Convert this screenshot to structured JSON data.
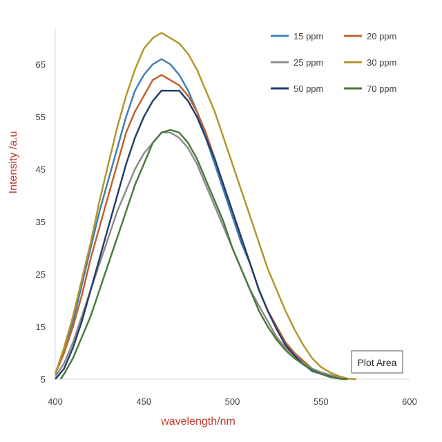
{
  "chart_data": {
    "type": "line",
    "title": "",
    "xlabel": "wavelength/nm",
    "ylabel": "Intensity /a.u",
    "xlim": [
      400,
      600
    ],
    "ylim": [
      5,
      72
    ],
    "x_ticks": [
      400,
      450,
      500,
      550,
      600
    ],
    "y_ticks": [
      5,
      15,
      25,
      35,
      45,
      55,
      65
    ],
    "grid": false,
    "legend_position": "top-right",
    "tooltip": "Plot Area",
    "series": [
      {
        "name": "15 ppm",
        "color": "#3f7fb6",
        "points": [
          [
            400,
            6
          ],
          [
            405,
            10
          ],
          [
            410,
            16
          ],
          [
            415,
            23
          ],
          [
            420,
            30
          ],
          [
            425,
            37
          ],
          [
            430,
            43
          ],
          [
            435,
            49
          ],
          [
            440,
            55
          ],
          [
            445,
            60
          ],
          [
            450,
            63
          ],
          [
            455,
            65
          ],
          [
            460,
            66
          ],
          [
            465,
            65
          ],
          [
            470,
            63
          ],
          [
            475,
            60
          ],
          [
            480,
            56
          ],
          [
            485,
            51
          ],
          [
            490,
            46
          ],
          [
            495,
            41
          ],
          [
            500,
            36
          ],
          [
            505,
            31
          ],
          [
            510,
            27
          ],
          [
            515,
            22
          ],
          [
            520,
            18
          ],
          [
            525,
            15
          ],
          [
            530,
            12
          ],
          [
            535,
            10
          ],
          [
            540,
            8
          ],
          [
            545,
            6.5
          ],
          [
            550,
            6
          ],
          [
            555,
            5.6
          ],
          [
            560,
            5.2
          ],
          [
            565,
            5
          ]
        ]
      },
      {
        "name": "20 ppm",
        "color": "#c0622f",
        "points": [
          [
            400,
            6
          ],
          [
            405,
            10
          ],
          [
            410,
            15
          ],
          [
            415,
            21
          ],
          [
            420,
            28
          ],
          [
            425,
            34
          ],
          [
            430,
            40
          ],
          [
            435,
            46
          ],
          [
            440,
            52
          ],
          [
            445,
            56
          ],
          [
            450,
            59
          ],
          [
            455,
            62
          ],
          [
            460,
            63
          ],
          [
            465,
            62
          ],
          [
            470,
            61
          ],
          [
            475,
            59
          ],
          [
            480,
            56
          ],
          [
            485,
            52
          ],
          [
            490,
            47
          ],
          [
            495,
            42
          ],
          [
            500,
            37
          ],
          [
            505,
            32
          ],
          [
            510,
            27
          ],
          [
            515,
            22
          ],
          [
            520,
            18
          ],
          [
            525,
            15
          ],
          [
            530,
            12
          ],
          [
            535,
            10
          ],
          [
            540,
            8.5
          ],
          [
            545,
            7
          ],
          [
            550,
            6.3
          ],
          [
            555,
            5.8
          ],
          [
            560,
            5.4
          ],
          [
            565,
            5
          ]
        ]
      },
      {
        "name": "25 ppm",
        "color": "#8c8c8c",
        "points": [
          [
            400,
            5.5
          ],
          [
            405,
            8
          ],
          [
            410,
            12
          ],
          [
            415,
            17
          ],
          [
            420,
            22
          ],
          [
            425,
            27
          ],
          [
            430,
            32
          ],
          [
            435,
            37
          ],
          [
            440,
            41
          ],
          [
            445,
            45
          ],
          [
            450,
            48
          ],
          [
            455,
            50
          ],
          [
            460,
            52
          ],
          [
            465,
            52
          ],
          [
            470,
            51
          ],
          [
            475,
            49
          ],
          [
            480,
            46
          ],
          [
            485,
            42
          ],
          [
            490,
            38
          ],
          [
            495,
            34
          ],
          [
            500,
            30
          ],
          [
            505,
            26
          ],
          [
            510,
            22
          ],
          [
            515,
            19
          ],
          [
            520,
            16
          ],
          [
            525,
            13
          ],
          [
            530,
            11
          ],
          [
            535,
            9.5
          ],
          [
            540,
            8
          ],
          [
            545,
            7
          ],
          [
            550,
            6.3
          ],
          [
            555,
            5.8
          ],
          [
            560,
            5.3
          ],
          [
            565,
            5
          ]
        ]
      },
      {
        "name": "30 ppm",
        "color": "#b3952a",
        "points": [
          [
            400,
            6
          ],
          [
            405,
            11
          ],
          [
            410,
            17
          ],
          [
            415,
            24
          ],
          [
            420,
            31
          ],
          [
            425,
            39
          ],
          [
            430,
            46
          ],
          [
            435,
            53
          ],
          [
            440,
            59
          ],
          [
            445,
            64
          ],
          [
            450,
            68
          ],
          [
            455,
            70
          ],
          [
            460,
            71
          ],
          [
            465,
            70
          ],
          [
            470,
            69
          ],
          [
            475,
            67
          ],
          [
            480,
            64
          ],
          [
            485,
            60
          ],
          [
            490,
            56
          ],
          [
            495,
            51
          ],
          [
            500,
            46
          ],
          [
            505,
            41
          ],
          [
            510,
            36
          ],
          [
            515,
            31
          ],
          [
            520,
            26
          ],
          [
            525,
            22
          ],
          [
            530,
            18
          ],
          [
            535,
            14.5
          ],
          [
            540,
            11.5
          ],
          [
            545,
            9
          ],
          [
            550,
            7.3
          ],
          [
            555,
            6.3
          ],
          [
            560,
            5.6
          ],
          [
            565,
            5.1
          ],
          [
            570,
            5
          ]
        ]
      },
      {
        "name": "50 ppm",
        "color": "#243d6b",
        "points": [
          [
            400,
            5
          ],
          [
            405,
            7
          ],
          [
            410,
            11
          ],
          [
            415,
            16
          ],
          [
            420,
            22
          ],
          [
            425,
            28
          ],
          [
            430,
            34
          ],
          [
            435,
            40
          ],
          [
            440,
            46
          ],
          [
            445,
            51
          ],
          [
            450,
            55
          ],
          [
            455,
            58
          ],
          [
            460,
            60
          ],
          [
            465,
            60
          ],
          [
            470,
            60
          ],
          [
            475,
            58
          ],
          [
            480,
            55
          ],
          [
            485,
            51
          ],
          [
            490,
            47
          ],
          [
            495,
            42
          ],
          [
            500,
            37
          ],
          [
            505,
            32
          ],
          [
            510,
            27
          ],
          [
            515,
            22
          ],
          [
            520,
            18
          ],
          [
            525,
            14.5
          ],
          [
            530,
            11.5
          ],
          [
            535,
            9.5
          ],
          [
            540,
            7.8
          ],
          [
            545,
            6.7
          ],
          [
            550,
            6
          ],
          [
            555,
            5.5
          ],
          [
            560,
            5.1
          ],
          [
            565,
            5
          ]
        ]
      },
      {
        "name": "70 ppm",
        "color": "#4c7a3a",
        "points": [
          [
            403,
            5
          ],
          [
            405,
            6
          ],
          [
            410,
            9
          ],
          [
            415,
            13
          ],
          [
            420,
            17
          ],
          [
            425,
            22
          ],
          [
            430,
            27
          ],
          [
            435,
            32
          ],
          [
            440,
            37
          ],
          [
            445,
            42
          ],
          [
            450,
            46
          ],
          [
            455,
            50
          ],
          [
            460,
            52
          ],
          [
            465,
            52.5
          ],
          [
            470,
            52
          ],
          [
            475,
            50
          ],
          [
            480,
            47
          ],
          [
            485,
            43
          ],
          [
            490,
            39
          ],
          [
            495,
            35
          ],
          [
            500,
            30
          ],
          [
            505,
            26
          ],
          [
            510,
            22
          ],
          [
            515,
            18
          ],
          [
            520,
            15
          ],
          [
            525,
            12.5
          ],
          [
            530,
            10.5
          ],
          [
            535,
            9
          ],
          [
            540,
            7.8
          ],
          [
            545,
            6.8
          ],
          [
            550,
            6
          ],
          [
            555,
            5.4
          ],
          [
            560,
            5.1
          ],
          [
            565,
            5
          ]
        ]
      }
    ]
  }
}
